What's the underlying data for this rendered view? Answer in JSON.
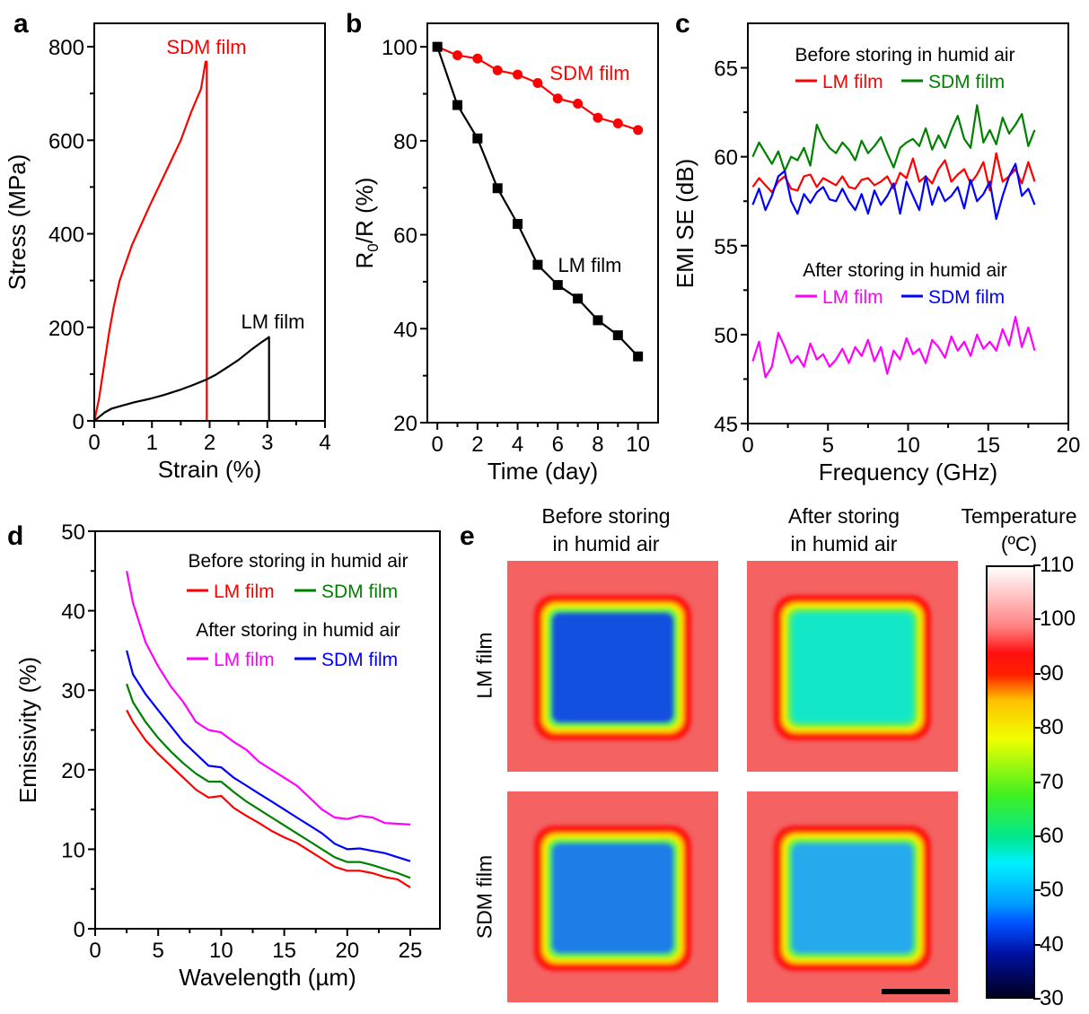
{
  "panel_letters": {
    "a": "a",
    "b": "b",
    "c": "c",
    "d": "d",
    "e": "e"
  },
  "chart_data": [
    {
      "id": "a",
      "type": "line",
      "xlabel": "Strain (%)",
      "ylabel": "Stress (MPa)",
      "xlim": [
        0,
        4
      ],
      "ylim": [
        0,
        850
      ],
      "xticks": [
        0,
        1,
        2,
        3,
        4
      ],
      "yticks": [
        0,
        200,
        400,
        600,
        800
      ],
      "grid": false,
      "series": [
        {
          "name": "SDM film",
          "color": "#ff0000",
          "x": [
            0,
            0.08,
            0.18,
            0.26,
            0.34,
            0.44,
            0.65,
            0.96,
            1.27,
            1.5,
            1.68,
            1.85,
            1.93,
            1.95,
            1.95
          ],
          "y": [
            0,
            45,
            127,
            191,
            245,
            300,
            375,
            460,
            540,
            600,
            660,
            710,
            768,
            768,
            0
          ]
        },
        {
          "name": "LM film",
          "color": "#000000",
          "x": [
            0,
            0.1,
            0.18,
            0.3,
            0.44,
            0.7,
            0.96,
            1.2,
            1.48,
            1.7,
            1.94,
            2.1,
            2.3,
            2.5,
            2.72,
            2.9,
            3.03,
            3.03
          ],
          "y": [
            0,
            10,
            18,
            26,
            31,
            40,
            47,
            55,
            66,
            76,
            88,
            98,
            114,
            130,
            152,
            168,
            179,
            0
          ]
        }
      ],
      "annotations": [
        {
          "text": "SDM film",
          "color": "#ff0000"
        },
        {
          "text": "LM film",
          "color": "#000000"
        }
      ]
    },
    {
      "id": "b",
      "type": "line",
      "xlabel": "Time (day)",
      "ylabel": "R0/R (%)",
      "ylabel_parts": {
        "main": "R",
        "sub": "0",
        "rest": "/R (%)"
      },
      "xlim": [
        -0.5,
        11
      ],
      "ylim": [
        20,
        105
      ],
      "xticks": [
        0,
        2,
        4,
        6,
        8,
        10
      ],
      "yticks": [
        20,
        40,
        60,
        80,
        100
      ],
      "grid": false,
      "series": [
        {
          "name": "SDM film",
          "color": "#ff0000",
          "marker": "circle",
          "x": [
            0,
            1,
            2,
            3,
            4,
            5,
            6,
            7,
            8,
            9,
            10
          ],
          "y": [
            100,
            98.2,
            97.5,
            95.0,
            94.1,
            92.3,
            89.0,
            87.9,
            84.9,
            83.7,
            82.3
          ]
        },
        {
          "name": "LM film",
          "color": "#000000",
          "marker": "square",
          "x": [
            0,
            1,
            2,
            3,
            4,
            5,
            6,
            7,
            8,
            9,
            10
          ],
          "y": [
            100,
            87.6,
            80.5,
            69.9,
            62.3,
            53.6,
            49.3,
            46.4,
            41.8,
            38.6,
            34.1
          ]
        }
      ],
      "annotations": [
        {
          "text": "SDM film",
          "color": "#ff0000"
        },
        {
          "text": "LM film",
          "color": "#000000"
        }
      ]
    },
    {
      "id": "c",
      "type": "line",
      "xlabel": "Frequency (GHz)",
      "ylabel": "EMI SE (dB)",
      "xlim": [
        0,
        20
      ],
      "ylim": [
        45,
        67.5
      ],
      "xticks": [
        0,
        5,
        10,
        15,
        20
      ],
      "yticks": [
        45,
        50,
        55,
        60,
        65
      ],
      "grid": false,
      "legend": [
        {
          "heading": "Before storing in humid air",
          "items": [
            {
              "name": "LM film",
              "color": "#ff0000"
            },
            {
              "name": "SDM film",
              "color": "#008000"
            }
          ]
        },
        {
          "heading": "After storing in humid air",
          "items": [
            {
              "name": "LM film",
              "color": "#ff00ff"
            },
            {
              "name": "SDM film",
              "color": "#0000ff"
            }
          ]
        }
      ],
      "x": [
        0.3,
        0.7,
        1.1,
        1.5,
        1.9,
        2.3,
        2.7,
        3.1,
        3.5,
        3.9,
        4.3,
        4.7,
        5.1,
        5.5,
        5.9,
        6.3,
        6.7,
        7.1,
        7.5,
        7.9,
        8.3,
        8.7,
        9.1,
        9.5,
        9.9,
        10.3,
        10.7,
        11.1,
        11.5,
        11.9,
        12.3,
        12.7,
        13.1,
        13.5,
        13.9,
        14.3,
        14.7,
        15.1,
        15.5,
        15.9,
        16.3,
        16.7,
        17.1,
        17.5,
        17.9
      ],
      "series": [
        {
          "name": "SDM film (before)",
          "color": "#008000",
          "y": [
            60,
            60.8,
            60.2,
            59.6,
            60.3,
            59.2,
            60,
            59.8,
            60.5,
            59.5,
            61.8,
            61,
            60.5,
            60.2,
            60.8,
            60.4,
            59.8,
            60.9,
            60.2,
            60.6,
            61.1,
            60.2,
            59.4,
            60.5,
            60.8,
            61,
            60.6,
            61.6,
            60.4,
            61.2,
            60.5,
            61.5,
            62.3,
            61,
            60.5,
            62.9,
            60.8,
            61.5,
            60.7,
            62.2,
            61.3,
            61.8,
            62.4,
            60.6,
            61.5
          ]
        },
        {
          "name": "LM film (before)",
          "color": "#ff0000",
          "y": [
            58.3,
            58.8,
            58.4,
            58,
            58.6,
            58.9,
            58.2,
            58.1,
            58.9,
            59,
            58.3,
            58.8,
            58.6,
            58.4,
            58.9,
            58.3,
            58.2,
            58.7,
            58.8,
            58.4,
            58.6,
            58.9,
            58.2,
            59.1,
            58.8,
            59.9,
            58.6,
            58.9,
            58.5,
            59.3,
            59.8,
            58.6,
            59,
            59.3,
            58.5,
            59,
            59.7,
            58.1,
            60.2,
            58.6,
            58.9,
            59.3,
            58.5,
            59.7,
            58.6
          ]
        },
        {
          "name": "SDM film (after)",
          "color": "#0000ff",
          "y": [
            57.3,
            58.2,
            57,
            57.8,
            58.9,
            59.2,
            57.5,
            56.8,
            57.9,
            57.4,
            58,
            58.3,
            57.6,
            57.5,
            58.2,
            57.5,
            57,
            57.9,
            56.8,
            58.1,
            57.3,
            57.8,
            58.5,
            56.8,
            58.6,
            57.8,
            57,
            58.9,
            57.3,
            58.3,
            57.5,
            57.8,
            58.3,
            57.1,
            58.7,
            57.5,
            57.9,
            58.6,
            56.5,
            57.8,
            58.9,
            59.6,
            57.8,
            58.2,
            57.3
          ]
        },
        {
          "name": "LM film (after)",
          "color": "#ff00ff",
          "y": [
            48.5,
            49.6,
            47.6,
            48.2,
            50.1,
            49.3,
            48.4,
            48.8,
            48.2,
            49.5,
            48.6,
            48.9,
            48.2,
            48.6,
            49.2,
            48.4,
            49.3,
            48.8,
            49.7,
            48.5,
            49.3,
            47.8,
            49.1,
            48.6,
            49.8,
            48.9,
            49.2,
            48.4,
            49.7,
            49.3,
            48.7,
            49.9,
            49.1,
            49.6,
            48.8,
            50,
            49.2,
            49.6,
            49.1,
            50.3,
            49.4,
            51,
            49.3,
            50.4,
            49.1
          ]
        }
      ]
    },
    {
      "id": "d",
      "type": "line",
      "xlabel": "Wavelength (µm)",
      "ylabel": "Emissivity (%)",
      "xlim": [
        0,
        27.35
      ],
      "ylim": [
        0,
        50
      ],
      "xticks": [
        0,
        5,
        10,
        15,
        20,
        25
      ],
      "yticks": [
        0,
        10,
        20,
        30,
        40,
        50
      ],
      "grid": false,
      "legend": [
        {
          "heading": "Before storing in humid air",
          "items": [
            {
              "name": "LM film",
              "color": "#ff0000"
            },
            {
              "name": "SDM film",
              "color": "#008000"
            }
          ]
        },
        {
          "heading": "After storing in humid air",
          "items": [
            {
              "name": "LM film",
              "color": "#ff00ff"
            },
            {
              "name": "SDM film",
              "color": "#0000ff"
            }
          ]
        }
      ],
      "x": [
        2.5,
        3,
        4,
        5,
        6,
        7,
        8,
        9,
        10,
        11,
        12,
        13,
        14,
        15,
        16,
        17,
        18,
        19,
        20,
        21,
        22,
        23,
        24,
        25
      ],
      "series": [
        {
          "name": "LM film (after)",
          "color": "#ff00ff",
          "y": [
            45,
            41,
            36,
            33,
            30.5,
            28.5,
            26,
            25,
            24.7,
            23.5,
            22.5,
            21,
            20,
            19,
            18,
            16.5,
            15,
            14,
            13.8,
            14.2,
            14,
            13.3,
            13.2,
            13.1
          ]
        },
        {
          "name": "SDM film (after)",
          "color": "#0000ff",
          "y": [
            35,
            32,
            29.5,
            27.5,
            25.5,
            23.5,
            22,
            20.5,
            20.3,
            19,
            18,
            17,
            16,
            15,
            14,
            13,
            12,
            10.7,
            10,
            10.1,
            9.8,
            9.5,
            9,
            8.5
          ]
        },
        {
          "name": "SDM film (before)",
          "color": "#008000",
          "y": [
            30.8,
            28.5,
            26,
            24,
            22.3,
            20.8,
            19.5,
            18.5,
            18.5,
            17.2,
            16,
            15,
            14,
            13,
            12,
            11,
            10,
            9,
            8.4,
            8.4,
            8,
            7.5,
            7,
            6.4
          ]
        },
        {
          "name": "LM film (before)",
          "color": "#ff0000",
          "y": [
            27.5,
            26,
            23.7,
            22,
            20.5,
            19,
            17.5,
            16.5,
            16.7,
            15.2,
            14.2,
            13.3,
            12.3,
            11.5,
            10.8,
            9.8,
            8.8,
            7.8,
            7.3,
            7.3,
            7,
            6.5,
            6.2,
            5.2
          ]
        }
      ]
    }
  ],
  "panel_e": {
    "col_titles": [
      [
        "Before storing",
        "in humid air"
      ],
      [
        "After storing",
        "in humid air"
      ]
    ],
    "row_labels": [
      "LM film",
      "SDM film"
    ],
    "inner_colors": [
      [
        "#1450e0",
        "#12e8c8"
      ],
      [
        "#1e7ee8",
        "#26aaee"
      ]
    ],
    "colorbar": {
      "title": "Temperature",
      "unit": "(ºC)",
      "min": 30,
      "max": 110,
      "ticks": [
        "110",
        "100",
        "90",
        "80",
        "70",
        "60",
        "50",
        "40",
        "30"
      ]
    }
  }
}
